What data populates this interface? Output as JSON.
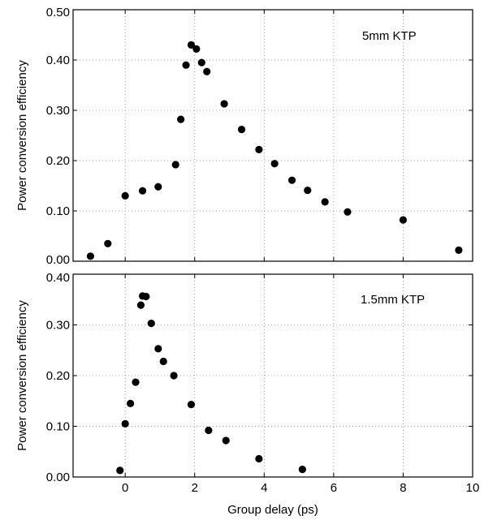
{
  "chart_data": [
    {
      "type": "scatter",
      "annotation": "5mm KTP",
      "ylabel": "Power conversion efficiency",
      "xlim": [
        -1.5,
        10
      ],
      "ylim": [
        0,
        0.5
      ],
      "grid": true,
      "xticks": [
        0,
        2,
        4,
        6,
        8,
        10
      ],
      "yticks": [
        0,
        0.1,
        0.2,
        0.3,
        0.4,
        0.5
      ],
      "ytick_labels": [
        "0.00",
        "0.10",
        "0.20",
        "0.30",
        "0.40",
        "0.50"
      ],
      "x": [
        -1.0,
        -0.5,
        0.0,
        0.5,
        0.95,
        1.45,
        1.6,
        1.75,
        1.9,
        2.05,
        2.2,
        2.35,
        2.85,
        3.35,
        3.85,
        4.3,
        4.8,
        5.25,
        5.75,
        6.4,
        8.0,
        9.6
      ],
      "y": [
        0.01,
        0.035,
        0.13,
        0.14,
        0.148,
        0.192,
        0.282,
        0.39,
        0.43,
        0.422,
        0.395,
        0.377,
        0.313,
        0.262,
        0.222,
        0.194,
        0.161,
        0.141,
        0.118,
        0.098,
        0.082,
        0.022
      ]
    },
    {
      "type": "scatter",
      "annotation": "1.5mm KTP",
      "ylabel": "Power conversion efficiency",
      "xlabel": "Group delay (ps)",
      "xlim": [
        -1.5,
        10
      ],
      "ylim": [
        0,
        0.4
      ],
      "grid": true,
      "xticks": [
        0,
        2,
        4,
        6,
        8,
        10
      ],
      "yticks": [
        0,
        0.1,
        0.2,
        0.3,
        0.4
      ],
      "ytick_labels": [
        "0.00",
        "0.10",
        "0.20",
        "0.30",
        "0.40"
      ],
      "x": [
        -0.15,
        0.0,
        0.15,
        0.3,
        0.45,
        0.5,
        0.6,
        0.75,
        0.95,
        1.1,
        1.4,
        1.9,
        2.4,
        2.9,
        3.85,
        5.1
      ],
      "y": [
        0.013,
        0.105,
        0.145,
        0.187,
        0.339,
        0.357,
        0.356,
        0.303,
        0.253,
        0.228,
        0.2,
        0.143,
        0.092,
        0.072,
        0.036,
        0.015
      ]
    }
  ]
}
